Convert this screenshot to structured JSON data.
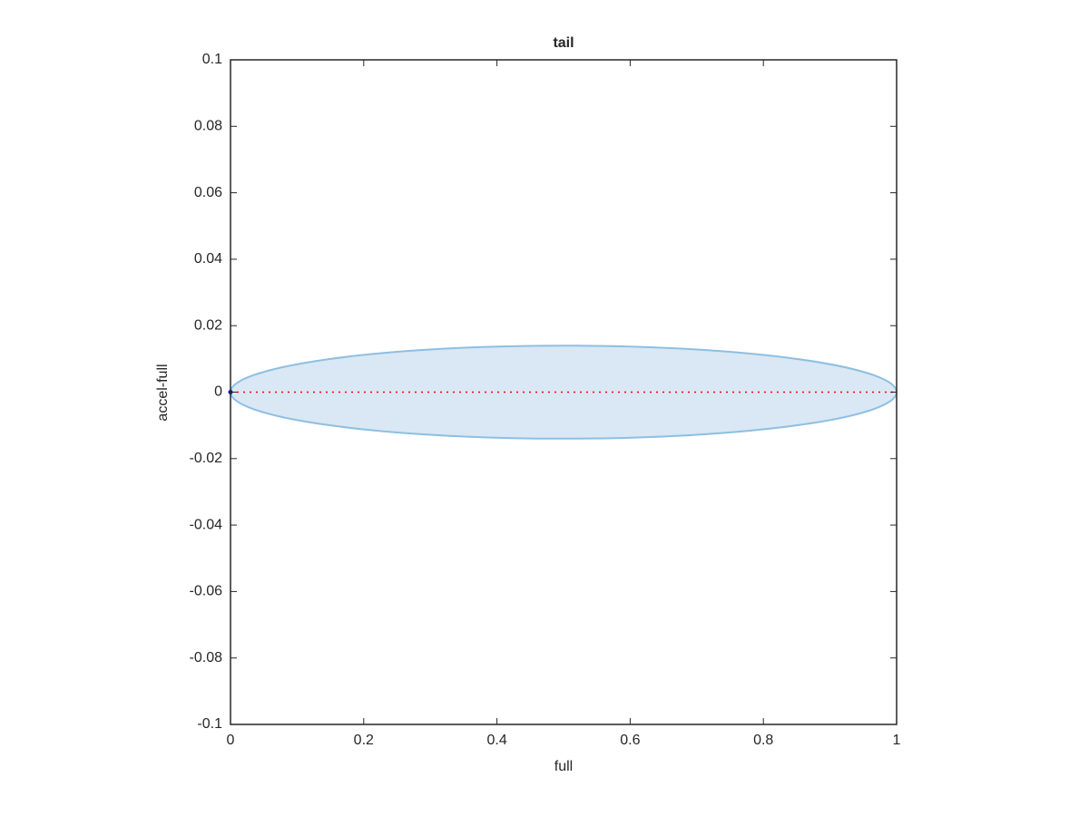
{
  "chart_data": {
    "type": "scatter",
    "title": "tail",
    "xlabel": "full",
    "ylabel": "accel-full",
    "xlim": [
      0,
      1
    ],
    "xticks": [
      0,
      0.2,
      0.4,
      0.6,
      0.8,
      1
    ],
    "ylim": [
      -0.1,
      0.1
    ],
    "yticks": [
      -0.1,
      -0.08,
      -0.06,
      -0.04,
      -0.02,
      0,
      0.02,
      0.04,
      0.06,
      0.08,
      0.1
    ],
    "ellipse": {
      "cx": 0.5,
      "cy": 0,
      "rx": 0.5,
      "ry": 0.014,
      "color": "#8dbfe2",
      "fill": "#d9e8f4"
    },
    "line": {
      "x": [
        0,
        1
      ],
      "y": [
        0,
        0
      ],
      "color": "#ff0000"
    },
    "points": {
      "x": [
        0
      ],
      "y": [
        0
      ],
      "color": "#0000ff"
    }
  }
}
